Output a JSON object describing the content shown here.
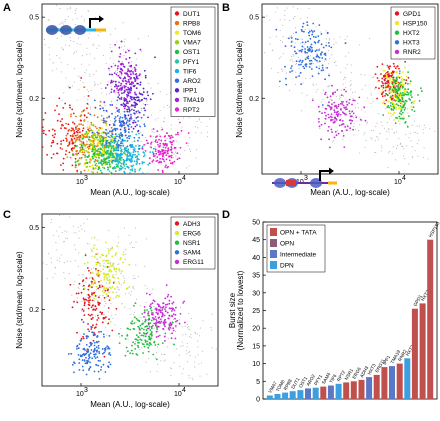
{
  "chart_data": [
    {
      "panel": "A",
      "type": "scatter",
      "xlabel": "Mean (A.U., log-scale)",
      "ylabel": "Noise (std/mean, log-scale)",
      "x_scale": "log",
      "y_scale": "log",
      "xlim": [
        400,
        25000
      ],
      "ylim": [
        0.085,
        0.58
      ],
      "xticks": [
        "10",
        "10"
      ],
      "xtick_values": [
        1000,
        10000
      ],
      "yticks": [
        "0.5",
        "0.2"
      ],
      "ytick_values": [
        0.5,
        0.2
      ],
      "legend_position": "top-right",
      "background_color": "#bbbbbb",
      "series": [
        {
          "name": "DUT1",
          "color": "#e4161c",
          "center": [
            800,
            0.135
          ],
          "spread": [
            0.28,
            0.18
          ]
        },
        {
          "name": "RPB8",
          "color": "#ee6f12",
          "center": [
            1150,
            0.125
          ],
          "spread": [
            0.22,
            0.14
          ]
        },
        {
          "name": "TOM6",
          "color": "#f2ea1f",
          "center": [
            1600,
            0.115
          ],
          "spread": [
            0.2,
            0.12
          ]
        },
        {
          "name": "VMA7",
          "color": "#93d500",
          "center": [
            1500,
            0.112
          ],
          "spread": [
            0.25,
            0.12
          ]
        },
        {
          "name": "OST1",
          "color": "#1fbe3e",
          "center": [
            1700,
            0.108
          ],
          "spread": [
            0.22,
            0.1
          ]
        },
        {
          "name": "PFY1",
          "color": "#27c4a0",
          "center": [
            2400,
            0.105
          ],
          "spread": [
            0.22,
            0.1
          ]
        },
        {
          "name": "TIF6",
          "color": "#19b2e8",
          "center": [
            3000,
            0.105
          ],
          "spread": [
            0.22,
            0.1
          ]
        },
        {
          "name": "ARO2",
          "color": "#2f6edc",
          "center": [
            2500,
            0.145
          ],
          "spread": [
            0.22,
            0.12
          ]
        },
        {
          "name": "IPP1",
          "color": "#5425c9",
          "center": [
            3200,
            0.2
          ],
          "spread": [
            0.2,
            0.15
          ]
        },
        {
          "name": "TMA19",
          "color": "#a51fd6",
          "center": [
            2800,
            0.24
          ],
          "spread": [
            0.15,
            0.15
          ]
        },
        {
          "name": "RPT2",
          "color": "#e623c9",
          "center": [
            7000,
            0.112
          ],
          "spread": [
            0.18,
            0.1
          ]
        }
      ]
    },
    {
      "panel": "B",
      "type": "scatter",
      "xlabel": "Mean (A.U., log-scale)",
      "ylabel": "Noise (std/mean, log-scale)",
      "x_scale": "log",
      "y_scale": "log",
      "xlim": [
        400,
        25000
      ],
      "ylim": [
        0.085,
        0.58
      ],
      "xticks": [
        "10",
        "10"
      ],
      "xtick_values": [
        1000,
        10000
      ],
      "yticks": [
        "0.5",
        "0.2"
      ],
      "ytick_values": [
        0.5,
        0.2
      ],
      "legend_position": "top-right",
      "series": [
        {
          "name": "GPD1",
          "color": "#e4161c",
          "center": [
            8500,
            0.24
          ],
          "spread": [
            0.14,
            0.1
          ]
        },
        {
          "name": "HSP150",
          "color": "#f2ea1f",
          "center": [
            9500,
            0.21
          ],
          "spread": [
            0.13,
            0.1
          ]
        },
        {
          "name": "HXT2",
          "color": "#1fbe3e",
          "center": [
            10500,
            0.2
          ],
          "spread": [
            0.14,
            0.12
          ]
        },
        {
          "name": "HXT3",
          "color": "#2f6edc",
          "center": [
            1200,
            0.34
          ],
          "spread": [
            0.25,
            0.15
          ]
        },
        {
          "name": "RNR2",
          "color": "#c52ed6",
          "center": [
            2400,
            0.165
          ],
          "spread": [
            0.22,
            0.12
          ]
        }
      ]
    },
    {
      "panel": "C",
      "type": "scatter",
      "xlabel": "Mean (A.U., log-scale)",
      "ylabel": "Noise (std/mean, log-scale)",
      "x_scale": "log",
      "y_scale": "log",
      "xlim": [
        400,
        25000
      ],
      "ylim": [
        0.085,
        0.58
      ],
      "xticks": [
        "10",
        "10"
      ],
      "xtick_values": [
        1000,
        10000
      ],
      "yticks": [
        "0.5",
        "0.2"
      ],
      "ytick_values": [
        0.5,
        0.2
      ],
      "legend_position": "top-right",
      "series": [
        {
          "name": "ADH3",
          "color": "#e4161c",
          "center": [
            1350,
            0.21
          ],
          "spread": [
            0.18,
            0.2
          ]
        },
        {
          "name": "ERG6",
          "color": "#d6ec28",
          "center": [
            1800,
            0.3
          ],
          "spread": [
            0.2,
            0.14
          ]
        },
        {
          "name": "NSR1",
          "color": "#1fbe3e",
          "center": [
            4400,
            0.155
          ],
          "spread": [
            0.2,
            0.12
          ]
        },
        {
          "name": "SAM4",
          "color": "#2f6edc",
          "center": [
            1300,
            0.12
          ],
          "spread": [
            0.18,
            0.12
          ]
        },
        {
          "name": "ERG11",
          "color": "#c52ed6",
          "center": [
            7000,
            0.19
          ],
          "spread": [
            0.16,
            0.1
          ]
        }
      ]
    },
    {
      "panel": "D",
      "type": "bar",
      "ylabel": "Burst size",
      "ylabel2": "(Normalized to lowest)",
      "ylim": [
        0,
        50
      ],
      "yticks": [
        0,
        5,
        10,
        15,
        20,
        25,
        30,
        35,
        40,
        45,
        50
      ],
      "legend_position": "top-left",
      "legend": [
        {
          "label": "OPN + TATA",
          "color": "#c0504d"
        },
        {
          "label": "OPN",
          "color": "#8e5a7a"
        },
        {
          "label": "Intermediate",
          "color": "#5b78c6"
        },
        {
          "label": "DPN",
          "color": "#3d9ee0"
        }
      ],
      "categories": [
        "VMA7",
        "TOM6",
        "RPB8",
        "DUT1",
        "OST1",
        "ARO2",
        "PFY1",
        "SAM4",
        "TIF6",
        "RPT2",
        "NSR1",
        "ERG6",
        "ADH3",
        "HXT3",
        "ERG11",
        "IPP1",
        "TMA19",
        "RNR2",
        "HXT2",
        "GPD1",
        "HXT2",
        "HSP150"
      ],
      "values": [
        1,
        1.4,
        1.8,
        2.2,
        2.5,
        3,
        3.2,
        3.5,
        3.8,
        4.3,
        4.7,
        5,
        5.4,
        6.2,
        6.8,
        9,
        9.3,
        10,
        11.5,
        25.5,
        27,
        45
      ],
      "classes": [
        "DPN",
        "DPN",
        "DPN",
        "DPN",
        "DPN",
        "Intermediate",
        "DPN",
        "OPN + TATA",
        "Intermediate",
        "DPN",
        "OPN + TATA",
        "OPN + TATA",
        "OPN + TATA",
        "Intermediate",
        "OPN + TATA",
        "OPN + TATA",
        "Intermediate",
        "OPN + TATA",
        "DPN",
        "OPN + TATA",
        "OPN + TATA",
        "OPN + TATA"
      ]
    }
  ]
}
